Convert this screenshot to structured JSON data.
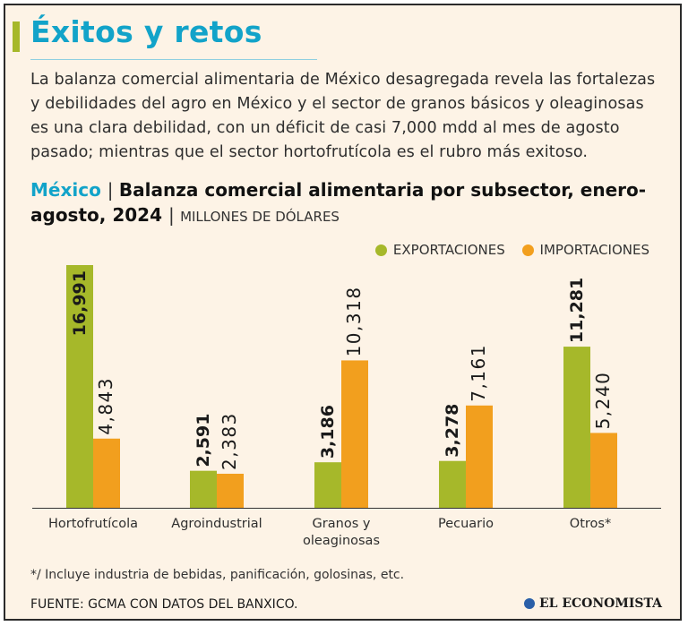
{
  "title": "Éxitos y retos",
  "intro": "La balanza comercial alimentaria de México desagregada revela las fortalezas y debilidades del agro en México y el sector de granos básicos y oleaginosas es una clara debilidad, con un déficit de casi 7,000 mdd al mes de agosto pasado; mientras que el sector hortofrutícola es el rubro más exitoso.",
  "chart_heading": {
    "country": "México",
    "title": "Balanza comercial alimentaria por subsector, enero-agosto, 2024",
    "units": "MILLONES DE DÓLARES"
  },
  "colors": {
    "export": "#a6b82a",
    "import": "#f29f1e"
  },
  "chart_data": {
    "type": "bar",
    "title": "Balanza comercial alimentaria por subsector, enero-agosto, 2024",
    "ylabel": "Millones de dólares",
    "ylim": [
      0,
      16991
    ],
    "categories": [
      "Hortofrutícola",
      "Agroindustrial",
      "Granos y oleaginosas",
      "Pecuario",
      "Otros*"
    ],
    "series": [
      {
        "name": "EXPORTACIONES",
        "values": [
          16991,
          2591,
          3186,
          3278,
          11281
        ],
        "labels": [
          "16,991",
          "2,591",
          "3,186",
          "3,278",
          "11,281"
        ]
      },
      {
        "name": "IMPORTACIONES",
        "values": [
          4843,
          2383,
          10318,
          7161,
          5240
        ],
        "labels": [
          "4,843",
          "2,383",
          "10,318",
          "7,161",
          "5,240"
        ]
      }
    ]
  },
  "footnote": "*/ Incluye industria de bebidas, panificación, golosinas, etc.",
  "source": "FUENTE: GCMA CON DATOS DEL BANXICO.",
  "logo_text": "EL ECONOMISTA"
}
